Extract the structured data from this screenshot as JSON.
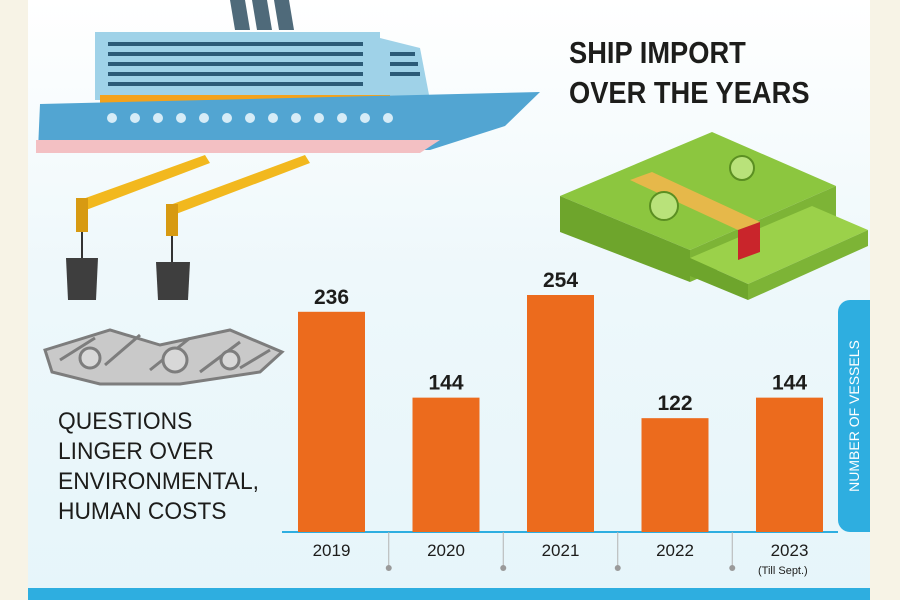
{
  "title_lines": [
    "SHIP IMPORT",
    "OVER THE YEARS"
  ],
  "subtitle_lines": [
    "QUESTIONS",
    "LINGER OVER",
    "ENVIRONMENTAL,",
    "HUMAN COSTS"
  ],
  "colors": {
    "bar": "#ec6b1d",
    "accent": "#2eaee0",
    "text": "#1d1d1b"
  },
  "icons": [
    "cruise-ship-icon",
    "crane-icon",
    "scrap-metal-icon",
    "money-stack-icon"
  ],
  "chart_data": {
    "type": "bar",
    "categories": [
      "2019",
      "2020",
      "2021",
      "2022",
      "2023"
    ],
    "category_notes": [
      "",
      "",
      "",
      "",
      "(Till Sept.)"
    ],
    "values": [
      236,
      144,
      254,
      122,
      144
    ],
    "ylabel": "NUMBER OF VESSELS",
    "ylim": [
      0,
      254
    ],
    "grid": false,
    "data_labels": true
  }
}
